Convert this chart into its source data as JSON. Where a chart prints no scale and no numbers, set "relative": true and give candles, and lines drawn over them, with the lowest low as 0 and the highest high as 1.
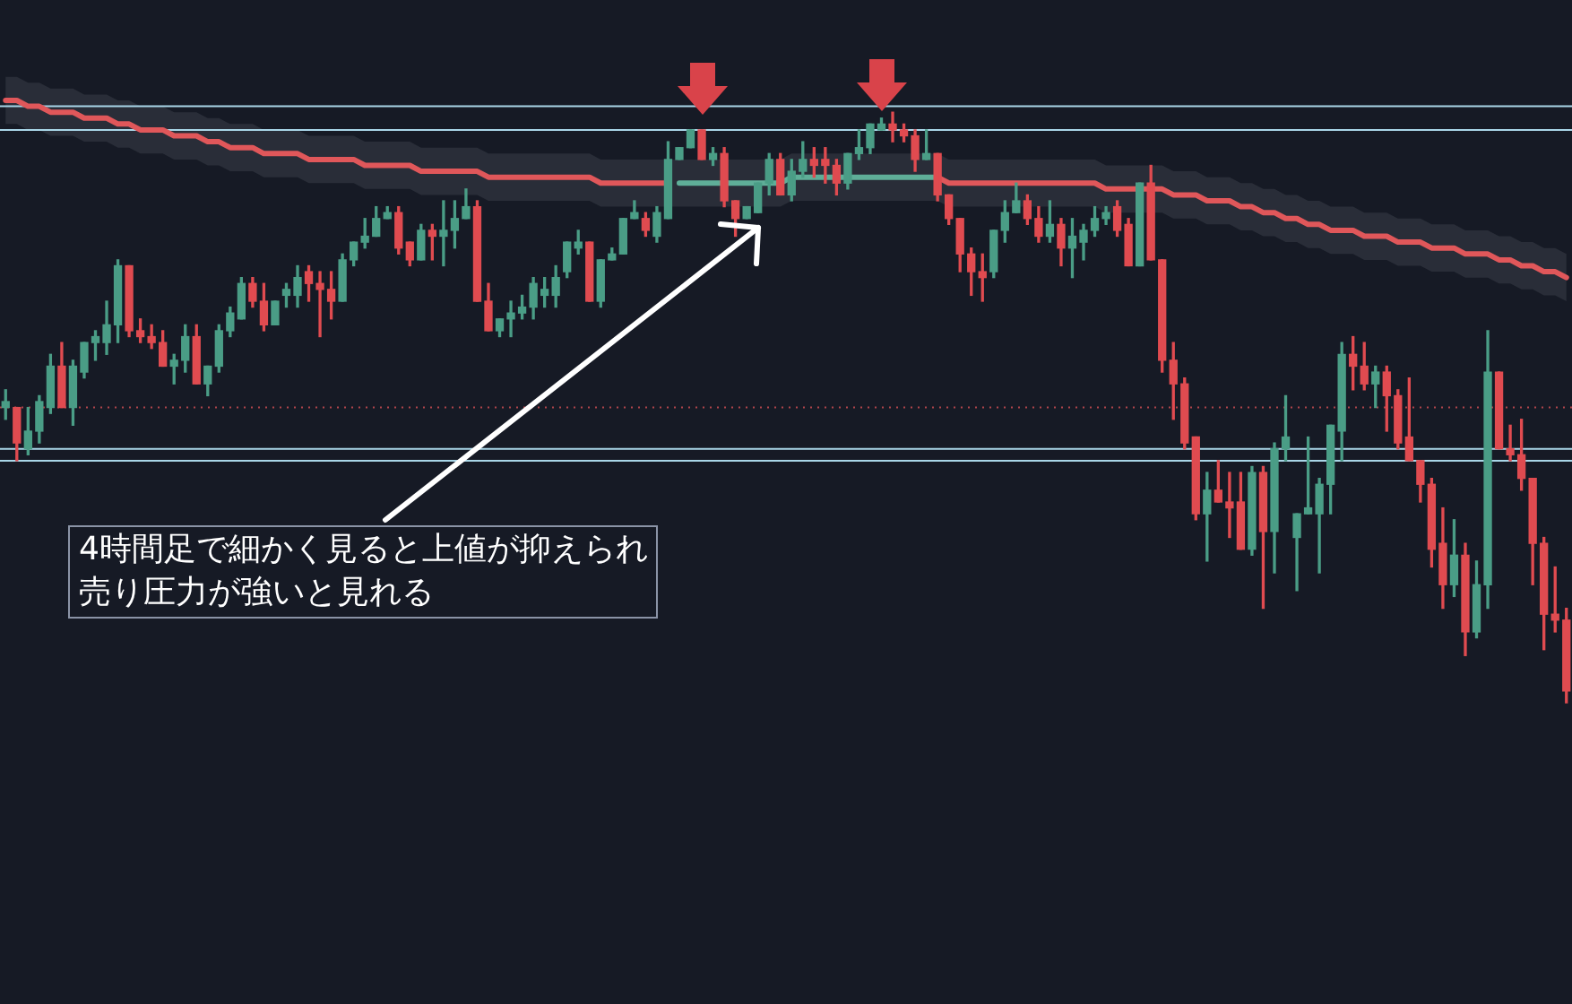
{
  "chart_data": {
    "type": "candlestick",
    "relative": true,
    "categories": [
      null,
      null,
      null,
      null,
      null,
      null,
      null,
      null,
      null,
      null,
      null,
      null,
      null,
      null,
      null,
      null,
      null,
      null,
      null,
      null,
      null,
      null,
      null,
      null,
      null,
      null,
      null,
      null,
      null,
      null,
      null,
      null,
      null,
      null,
      null,
      null,
      null,
      null,
      null,
      null,
      null,
      null,
      null,
      null,
      null,
      null,
      null,
      null,
      null,
      null,
      null,
      null,
      null,
      null,
      null,
      null,
      null,
      null,
      null,
      null,
      null,
      null,
      null,
      null,
      null,
      null,
      null,
      null,
      null,
      null,
      null,
      null,
      null,
      null,
      null,
      null,
      null,
      null,
      null,
      null,
      null,
      null,
      null,
      null,
      null,
      null,
      null,
      null,
      null,
      null,
      null,
      null,
      null,
      null,
      null,
      null,
      null,
      null,
      null,
      null,
      null,
      null,
      null,
      null,
      null,
      null,
      null,
      null,
      null,
      null,
      null,
      null,
      null,
      null,
      null,
      null,
      null,
      null,
      null,
      null,
      null,
      null,
      null,
      null,
      null,
      null,
      null,
      null,
      null,
      null,
      null,
      null,
      null,
      null,
      null,
      null,
      null,
      null,
      null,
      null
    ],
    "ohlc": [
      [
        0.5,
        0.53,
        0.48,
        0.51
      ],
      [
        0.5,
        0.5,
        0.41,
        0.44
      ],
      [
        0.43,
        0.5,
        0.42,
        0.46
      ],
      [
        0.46,
        0.52,
        0.44,
        0.51
      ],
      [
        0.5,
        0.59,
        0.49,
        0.57
      ],
      [
        0.57,
        0.61,
        0.5,
        0.5
      ],
      [
        0.5,
        0.58,
        0.47,
        0.57
      ],
      [
        0.56,
        0.61,
        0.55,
        0.61
      ],
      [
        0.61,
        0.63,
        0.58,
        0.62
      ],
      [
        0.61,
        0.68,
        0.59,
        0.64
      ],
      [
        0.64,
        0.75,
        0.61,
        0.74
      ],
      [
        0.74,
        0.74,
        0.62,
        0.63
      ],
      [
        0.63,
        0.65,
        0.61,
        0.62
      ],
      [
        0.62,
        0.64,
        0.6,
        0.61
      ],
      [
        0.61,
        0.63,
        0.57,
        0.57
      ],
      [
        0.57,
        0.59,
        0.54,
        0.58
      ],
      [
        0.58,
        0.64,
        0.56,
        0.62
      ],
      [
        0.62,
        0.64,
        0.54,
        0.54
      ],
      [
        0.54,
        0.57,
        0.52,
        0.57
      ],
      [
        0.57,
        0.64,
        0.56,
        0.63
      ],
      [
        0.63,
        0.67,
        0.62,
        0.66
      ],
      [
        0.65,
        0.72,
        0.65,
        0.71
      ],
      [
        0.71,
        0.72,
        0.67,
        0.68
      ],
      [
        0.68,
        0.71,
        0.63,
        0.64
      ],
      [
        0.64,
        0.68,
        0.64,
        0.68
      ],
      [
        0.69,
        0.71,
        0.67,
        0.7
      ],
      [
        0.69,
        0.74,
        0.67,
        0.72
      ],
      [
        0.73,
        0.74,
        0.68,
        0.71
      ],
      [
        0.71,
        0.73,
        0.62,
        0.7
      ],
      [
        0.7,
        0.73,
        0.65,
        0.68
      ],
      [
        0.68,
        0.76,
        0.68,
        0.75
      ],
      [
        0.75,
        0.78,
        0.74,
        0.78
      ],
      [
        0.78,
        0.82,
        0.77,
        0.79
      ],
      [
        0.79,
        0.84,
        0.79,
        0.82
      ],
      [
        0.82,
        0.84,
        0.82,
        0.83
      ],
      [
        0.83,
        0.84,
        0.76,
        0.77
      ],
      [
        0.78,
        0.78,
        0.74,
        0.75
      ],
      [
        0.75,
        0.81,
        0.75,
        0.8
      ],
      [
        0.8,
        0.81,
        0.75,
        0.79
      ],
      [
        0.79,
        0.85,
        0.74,
        0.8
      ],
      [
        0.8,
        0.85,
        0.77,
        0.82
      ],
      [
        0.82,
        0.87,
        0.82,
        0.84
      ],
      [
        0.84,
        0.85,
        0.68,
        0.68
      ],
      [
        0.68,
        0.71,
        0.63,
        0.63
      ],
      [
        0.63,
        0.65,
        0.62,
        0.65
      ],
      [
        0.65,
        0.68,
        0.62,
        0.66
      ],
      [
        0.66,
        0.69,
        0.65,
        0.67
      ],
      [
        0.67,
        0.72,
        0.65,
        0.71
      ],
      [
        0.69,
        0.72,
        0.67,
        0.7
      ],
      [
        0.69,
        0.74,
        0.67,
        0.72
      ],
      [
        0.73,
        0.78,
        0.72,
        0.78
      ],
      [
        0.77,
        0.8,
        0.76,
        0.78
      ],
      [
        0.78,
        0.78,
        0.68,
        0.68
      ],
      [
        0.68,
        0.75,
        0.67,
        0.75
      ],
      [
        0.75,
        0.77,
        0.75,
        0.76
      ],
      [
        0.76,
        0.82,
        0.76,
        0.82
      ],
      [
        0.82,
        0.85,
        0.82,
        0.83
      ],
      [
        0.82,
        0.83,
        0.79,
        0.8
      ],
      [
        0.79,
        0.84,
        0.78,
        0.83
      ],
      [
        0.82,
        0.95,
        0.82,
        0.92
      ],
      [
        0.92,
        0.94,
        0.92,
        0.94
      ],
      [
        0.94,
        0.97,
        0.94,
        0.97
      ],
      [
        0.97,
        0.97,
        0.92,
        0.92
      ],
      [
        0.92,
        0.94,
        0.91,
        0.93
      ],
      [
        0.93,
        0.94,
        0.84,
        0.85
      ],
      [
        0.85,
        0.85,
        0.79,
        0.82
      ],
      [
        0.82,
        0.84,
        0.82,
        0.84
      ],
      [
        0.83,
        0.88,
        0.83,
        0.88
      ],
      [
        0.88,
        0.93,
        0.86,
        0.92
      ],
      [
        0.92,
        0.93,
        0.86,
        0.86
      ],
      [
        0.86,
        0.92,
        0.85,
        0.9
      ],
      [
        0.9,
        0.95,
        0.89,
        0.92
      ],
      [
        0.92,
        0.94,
        0.89,
        0.91
      ],
      [
        0.92,
        0.94,
        0.88,
        0.91
      ],
      [
        0.91,
        0.92,
        0.86,
        0.88
      ],
      [
        0.88,
        0.93,
        0.87,
        0.93
      ],
      [
        0.93,
        0.97,
        0.92,
        0.94
      ],
      [
        0.94,
        0.98,
        0.93,
        0.98
      ],
      [
        0.97,
        0.99,
        0.97,
        0.98
      ],
      [
        0.98,
        1,
        0.95,
        0.97
      ],
      [
        0.97,
        0.98,
        0.95,
        0.96
      ],
      [
        0.96,
        0.97,
        0.9,
        0.92
      ],
      [
        0.92,
        0.97,
        0.92,
        0.93
      ],
      [
        0.93,
        0.93,
        0.85,
        0.86
      ],
      [
        0.86,
        0.86,
        0.81,
        0.82
      ],
      [
        0.82,
        0.82,
        0.73,
        0.76
      ],
      [
        0.76,
        0.77,
        0.69,
        0.73
      ],
      [
        0.73,
        0.76,
        0.68,
        0.72
      ],
      [
        0.73,
        0.8,
        0.72,
        0.8
      ],
      [
        0.8,
        0.85,
        0.78,
        0.83
      ],
      [
        0.83,
        0.88,
        0.83,
        0.85
      ],
      [
        0.85,
        0.86,
        0.81,
        0.82
      ],
      [
        0.82,
        0.84,
        0.78,
        0.79
      ],
      [
        0.79,
        0.85,
        0.78,
        0.81
      ],
      [
        0.81,
        0.82,
        0.74,
        0.77
      ],
      [
        0.77,
        0.82,
        0.72,
        0.79
      ],
      [
        0.78,
        0.81,
        0.75,
        0.8
      ],
      [
        0.8,
        0.84,
        0.79,
        0.82
      ],
      [
        0.82,
        0.84,
        0.81,
        0.83
      ],
      [
        0.84,
        0.85,
        0.79,
        0.8
      ],
      [
        0.81,
        0.82,
        0.74,
        0.74
      ],
      [
        0.74,
        0.88,
        0.74,
        0.88
      ],
      [
        0.88,
        0.91,
        0.75,
        0.75
      ],
      [
        0.75,
        0.75,
        0.56,
        0.58
      ],
      [
        0.58,
        0.61,
        0.48,
        0.54
      ],
      [
        0.54,
        0.55,
        0.43,
        0.44
      ],
      [
        0.45,
        0.45,
        0.31,
        0.32
      ],
      [
        0.32,
        0.39,
        0.24,
        0.36
      ],
      [
        0.36,
        0.41,
        0.34,
        0.34
      ],
      [
        0.34,
        0.39,
        0.28,
        0.33
      ],
      [
        0.34,
        0.39,
        0.26,
        0.26
      ],
      [
        0.26,
        0.4,
        0.25,
        0.39
      ],
      [
        0.39,
        0.4,
        0.16,
        0.29
      ],
      [
        0.29,
        0.44,
        0.22,
        0.43
      ],
      [
        0.43,
        0.52,
        0.41,
        0.45
      ],
      [
        0.28,
        0.32,
        0.19,
        0.32
      ],
      [
        0.32,
        0.45,
        0.32,
        0.33
      ],
      [
        0.32,
        0.38,
        0.22,
        0.37
      ],
      [
        0.37,
        0.47,
        0.32,
        0.47
      ],
      [
        0.46,
        0.61,
        0.41,
        0.59
      ],
      [
        0.59,
        0.62,
        0.53,
        0.57
      ],
      [
        0.57,
        0.61,
        0.53,
        0.54
      ],
      [
        0.54,
        0.57,
        0.5,
        0.56
      ],
      [
        0.56,
        0.57,
        0.46,
        0.52
      ],
      [
        0.52,
        0.53,
        0.43,
        0.44
      ],
      [
        0.45,
        0.55,
        0.41,
        0.41
      ],
      [
        0.41,
        0.41,
        0.34,
        0.37
      ],
      [
        0.37,
        0.38,
        0.23,
        0.26
      ],
      [
        0.27,
        0.33,
        0.16,
        0.2
      ],
      [
        0.2,
        0.31,
        0.18,
        0.25
      ],
      [
        0.25,
        0.27,
        0.08,
        0.12
      ],
      [
        0.12,
        0.24,
        0.11,
        0.2
      ],
      [
        0.2,
        0.63,
        0.16,
        0.56
      ],
      [
        0.56,
        0.56,
        0.43,
        0.43
      ],
      [
        0.43,
        0.47,
        0.41,
        0.42
      ],
      [
        0.42,
        0.48,
        0.36,
        0.38
      ],
      [
        0.38,
        0.38,
        0.2,
        0.27
      ],
      [
        0.27,
        0.28,
        0.09,
        0.15
      ],
      [
        0.15,
        0.23,
        0.12,
        0.14
      ],
      [
        0.14,
        0.16,
        0,
        0.02
      ]
    ],
    "series": [
      {
        "type": "line",
        "color": "#e0575a",
        "values": [
          1.02,
          1.02,
          1.01,
          1.01,
          1.0,
          1.0,
          1.0,
          0.99,
          0.99,
          0.99,
          0.98,
          0.98,
          0.97,
          0.97,
          0.97,
          0.96,
          0.96,
          0.96,
          0.95,
          0.95,
          0.94,
          0.94,
          0.94,
          0.93,
          0.93,
          0.93,
          0.93,
          0.92,
          0.92,
          0.92,
          0.92,
          0.92,
          0.91,
          0.91,
          0.91,
          0.91,
          0.91,
          0.9,
          0.9,
          0.9,
          0.9,
          0.9,
          0.9,
          0.89,
          0.89,
          0.89,
          0.89,
          0.89,
          0.89,
          0.89,
          0.89,
          0.89,
          0.89,
          0.88,
          0.88,
          0.88,
          0.88,
          0.88,
          0.88,
          0.88,
          null,
          null,
          null,
          null,
          null,
          null,
          null,
          null,
          null,
          null,
          null,
          null,
          null,
          null,
          null,
          null,
          null,
          null,
          null,
          null,
          null,
          null,
          null,
          0.89,
          0.88,
          0.88,
          0.88,
          0.88,
          0.88,
          0.88,
          0.88,
          0.88,
          0.88,
          0.88,
          0.88,
          0.88,
          0.88,
          0.88,
          0.87,
          0.87,
          0.87,
          0.87,
          0.87,
          0.87,
          0.86,
          0.86,
          0.86,
          0.85,
          0.85,
          0.85,
          0.84,
          0.84,
          0.83,
          0.83,
          0.82,
          0.82,
          0.81,
          0.81,
          0.8,
          0.8,
          0.8,
          0.79,
          0.79,
          0.79,
          0.78,
          0.78,
          0.78,
          0.77,
          0.77,
          0.77,
          0.76,
          0.76,
          0.76,
          0.75,
          0.75,
          0.74,
          0.74,
          0.73,
          0.73,
          0.72
        ],
        "lower": [
          0.98,
          0.98,
          0.97,
          0.97,
          0.96,
          0.96,
          0.96,
          0.95,
          0.95,
          0.95,
          0.94,
          0.94,
          0.93,
          0.93,
          0.93,
          0.92,
          0.92,
          0.92,
          0.91,
          0.91,
          0.9,
          0.9,
          0.9,
          0.89,
          0.89,
          0.89,
          0.89,
          0.88,
          0.88,
          0.88,
          0.88,
          0.88,
          0.87,
          0.87,
          0.87,
          0.87,
          0.87,
          0.86,
          0.86,
          0.86,
          0.86,
          0.86,
          0.86,
          0.85,
          0.85,
          0.85,
          0.85,
          0.85,
          0.85,
          0.85,
          0.85,
          0.85,
          0.85,
          0.84,
          0.84,
          0.84,
          0.84,
          0.84,
          0.84,
          0.84,
          0.84,
          0.84,
          0.84,
          0.84,
          0.84,
          0.84,
          0.84,
          0.84,
          0.84,
          0.84,
          0.85,
          0.85,
          0.85,
          0.85,
          0.85,
          0.85,
          0.85,
          0.85,
          0.85,
          0.85,
          0.85,
          0.85,
          0.85,
          0.85,
          0.84,
          0.84,
          0.84,
          0.84,
          0.84,
          0.84,
          0.84,
          0.84,
          0.84,
          0.84,
          0.84,
          0.84,
          0.84,
          0.84,
          0.83,
          0.83,
          0.83,
          0.83,
          0.83,
          0.83,
          0.82,
          0.82,
          0.82,
          0.81,
          0.81,
          0.81,
          0.8,
          0.8,
          0.79,
          0.79,
          0.78,
          0.78,
          0.77,
          0.77,
          0.76,
          0.76,
          0.76,
          0.75,
          0.75,
          0.75,
          0.74,
          0.74,
          0.74,
          0.73,
          0.73,
          0.73,
          0.72,
          0.72,
          0.72,
          0.71,
          0.71,
          0.7,
          0.7,
          0.69,
          0.69,
          0.68
        ],
        "upper": [
          1.06,
          1.06,
          1.05,
          1.05,
          1.04,
          1.04,
          1.04,
          1.03,
          1.03,
          1.03,
          1.02,
          1.02,
          1.01,
          1.01,
          1.01,
          1.0,
          1.0,
          1.0,
          0.99,
          0.99,
          0.98,
          0.98,
          0.98,
          0.97,
          0.97,
          0.97,
          0.97,
          0.96,
          0.96,
          0.96,
          0.96,
          0.96,
          0.95,
          0.95,
          0.95,
          0.95,
          0.95,
          0.94,
          0.94,
          0.94,
          0.94,
          0.94,
          0.94,
          0.93,
          0.93,
          0.93,
          0.93,
          0.93,
          0.93,
          0.93,
          0.93,
          0.93,
          0.93,
          0.92,
          0.92,
          0.92,
          0.92,
          0.92,
          0.92,
          0.92,
          0.92,
          0.92,
          0.92,
          0.92,
          0.92,
          0.92,
          0.92,
          0.92,
          0.92,
          0.92,
          0.93,
          0.93,
          0.93,
          0.93,
          0.93,
          0.93,
          0.93,
          0.93,
          0.93,
          0.93,
          0.93,
          0.93,
          0.93,
          0.93,
          0.92,
          0.92,
          0.92,
          0.92,
          0.92,
          0.92,
          0.92,
          0.92,
          0.92,
          0.92,
          0.92,
          0.92,
          0.92,
          0.92,
          0.91,
          0.91,
          0.91,
          0.91,
          0.91,
          0.91,
          0.9,
          0.9,
          0.9,
          0.89,
          0.89,
          0.89,
          0.88,
          0.88,
          0.87,
          0.87,
          0.86,
          0.86,
          0.85,
          0.85,
          0.84,
          0.84,
          0.84,
          0.83,
          0.83,
          0.83,
          0.82,
          0.82,
          0.82,
          0.81,
          0.81,
          0.81,
          0.8,
          0.8,
          0.8,
          0.79,
          0.79,
          0.78,
          0.78,
          0.77,
          0.77,
          0.76
        ]
      },
      {
        "type": "line",
        "color": "#5fae98",
        "values": [
          null,
          null,
          null,
          null,
          null,
          null,
          null,
          null,
          null,
          null,
          null,
          null,
          null,
          null,
          null,
          null,
          null,
          null,
          null,
          null,
          null,
          null,
          null,
          null,
          null,
          null,
          null,
          null,
          null,
          null,
          null,
          null,
          null,
          null,
          null,
          null,
          null,
          null,
          null,
          null,
          null,
          null,
          null,
          null,
          null,
          null,
          null,
          null,
          null,
          null,
          null,
          null,
          null,
          null,
          null,
          null,
          null,
          null,
          null,
          null,
          0.88,
          0.88,
          0.88,
          0.88,
          0.88,
          0.88,
          0.88,
          0.88,
          0.88,
          0.88,
          0.89,
          0.89,
          0.89,
          0.89,
          0.89,
          0.89,
          0.89,
          0.89,
          0.89,
          0.89,
          0.89,
          0.89,
          0.89,
          0.89,
          null,
          null,
          null,
          null,
          null,
          null,
          null,
          null,
          null,
          null,
          null,
          null,
          null,
          null,
          null,
          null,
          null,
          null,
          null,
          null,
          null,
          null,
          null,
          null,
          null,
          null,
          null,
          null,
          null,
          null,
          null,
          null,
          null,
          null,
          null,
          null,
          null,
          null,
          null,
          null,
          null,
          null,
          null,
          null,
          null,
          null,
          null,
          null,
          null,
          null,
          null,
          null,
          null,
          null,
          null,
          null
        ]
      }
    ],
    "ref_lines": [
      {
        "axis": "y",
        "value": 1.01,
        "color": "#a9d6e8",
        "line_style": "solid"
      },
      {
        "axis": "y",
        "value": 0.97,
        "color": "#a9d6e8",
        "line_style": "solid"
      },
      {
        "axis": "y",
        "value": 0.5,
        "color": "#b0454c",
        "line_style": "dotted"
      },
      {
        "axis": "y",
        "value": 0.43,
        "color": "#a9d6e8",
        "line_style": "solid"
      },
      {
        "axis": "y",
        "value": 0.41,
        "color": "#a9d6e8",
        "line_style": "solid"
      }
    ],
    "annotations": [
      "4時間足で細かく見ると上値が抑えられ",
      "売り圧力が強いと見れる"
    ]
  }
}
